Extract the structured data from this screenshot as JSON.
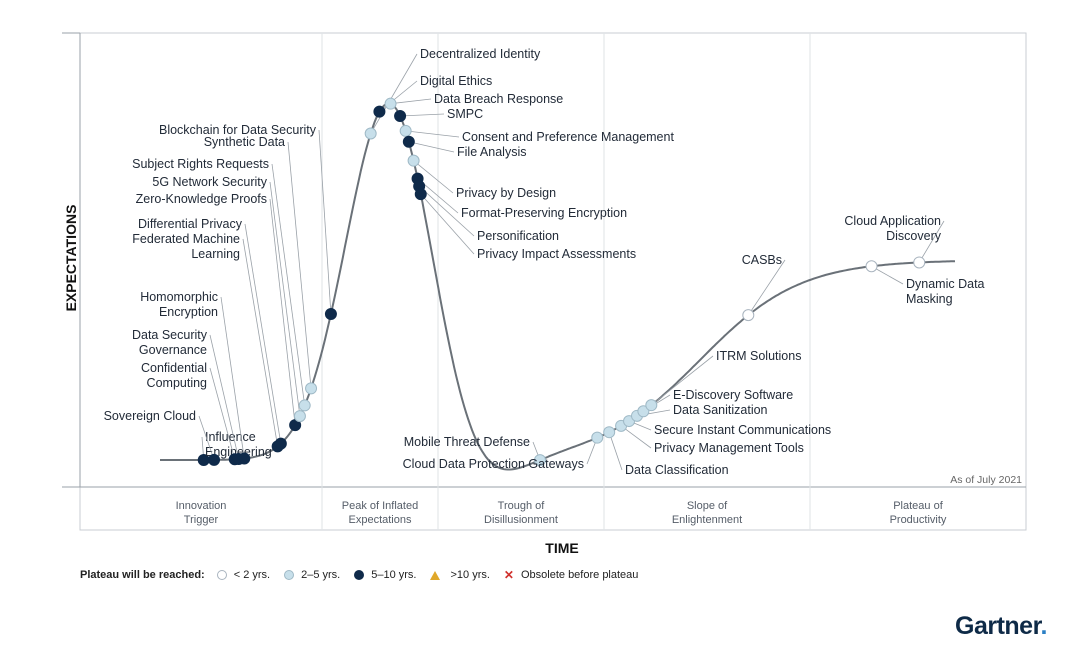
{
  "chart_data": {
    "type": "line",
    "x_label": "TIME",
    "y_label": "EXPECTATIONS",
    "note": "As of July 2021",
    "phases": [
      {
        "label": [
          "Innovation",
          "Trigger"
        ]
      },
      {
        "label": [
          "Peak of Inflated",
          "Expectations"
        ]
      },
      {
        "label": [
          "Trough of",
          "Disillusionment"
        ]
      },
      {
        "label": [
          "Slope of",
          "Enlightenment"
        ]
      },
      {
        "label": [
          "Plateau of",
          "Productivity"
        ]
      }
    ],
    "legend": {
      "title": "Plateau will be reached:",
      "items": [
        {
          "key": "lt2",
          "label": "< 2 yrs.",
          "fill": "#ffffff",
          "stroke": "#a9b4bf"
        },
        {
          "key": "2to5",
          "label": "2–5 yrs.",
          "fill": "#c7dfea",
          "stroke": "#9fb9c6"
        },
        {
          "key": "5to10",
          "label": "5–10 yrs.",
          "fill": "#0f2a4a",
          "stroke": "#0f2a4a"
        },
        {
          "key": "gt10",
          "label": ">10 yrs.",
          "fill": "#e0a82a",
          "stroke": "#e0a82a"
        },
        {
          "key": "obsolete",
          "label": "Obsolete before plateau",
          "fill": "#d0312d",
          "stroke": "#d0312d"
        }
      ]
    },
    "points": [
      {
        "name": [
          "Influence",
          "Engineering"
        ],
        "t": 0.055,
        "cat": "5to10"
      },
      {
        "name": [
          "Sovereign Cloud"
        ],
        "t": 0.068,
        "cat": "5to10"
      },
      {
        "name": [
          "Confidential",
          "Computing"
        ],
        "t": 0.094,
        "cat": "5to10"
      },
      {
        "name": [
          "Data Security",
          "Governance"
        ],
        "t": 0.099,
        "cat": "5to10"
      },
      {
        "name": [
          "Homomorphic",
          "Encryption"
        ],
        "t": 0.106,
        "cat": "5to10"
      },
      {
        "name": [
          "Federated Machine",
          "Learning"
        ],
        "t": 0.148,
        "cat": "5to10"
      },
      {
        "name": [
          "Differential Privacy"
        ],
        "t": 0.152,
        "cat": "5to10"
      },
      {
        "name": [
          "Zero-Knowledge Proofs"
        ],
        "t": 0.17,
        "cat": "5to10"
      },
      {
        "name": [
          "5G Network Security"
        ],
        "t": 0.176,
        "cat": "2to5"
      },
      {
        "name": [
          "Subject Rights Requests"
        ],
        "t": 0.182,
        "cat": "2to5"
      },
      {
        "name": [
          "Synthetic Data"
        ],
        "t": 0.19,
        "cat": "2to5"
      },
      {
        "name": [
          "Blockchain for Data Security"
        ],
        "t": 0.215,
        "cat": "5to10"
      },
      {
        "name": [
          "Decentralized Identity"
        ],
        "t": 0.265,
        "cat": "2to5"
      },
      {
        "name": [
          "Digital Ethics"
        ],
        "t": 0.276,
        "cat": "5to10"
      },
      {
        "name": [
          "Data Breach Response"
        ],
        "t": 0.29,
        "cat": "2to5"
      },
      {
        "name": [
          "SMPC"
        ],
        "t": 0.302,
        "cat": "5to10"
      },
      {
        "name": [
          "Consent and Preference Management"
        ],
        "t": 0.309,
        "cat": "2to5"
      },
      {
        "name": [
          "File Analysis"
        ],
        "t": 0.313,
        "cat": "5to10"
      },
      {
        "name": [
          "Privacy by Design"
        ],
        "t": 0.319,
        "cat": "2to5"
      },
      {
        "name": [
          "Format-Preserving Encryption"
        ],
        "t": 0.324,
        "cat": "5to10"
      },
      {
        "name": [
          "Personification"
        ],
        "t": 0.326,
        "cat": "5to10"
      },
      {
        "name": [
          "Privacy Impact Assessments"
        ],
        "t": 0.328,
        "cat": "5to10"
      },
      {
        "name": [
          "Mobile Threat Defense"
        ],
        "t": 0.478,
        "cat": "2to5"
      },
      {
        "name": [
          "Cloud Data Protection Gateways"
        ],
        "t": 0.55,
        "cat": "2to5"
      },
      {
        "name": [
          "Data Classification"
        ],
        "t": 0.565,
        "cat": "2to5"
      },
      {
        "name": [
          "Privacy Management Tools"
        ],
        "t": 0.58,
        "cat": "2to5"
      },
      {
        "name": [
          "Secure Instant Communications"
        ],
        "t": 0.59,
        "cat": "2to5"
      },
      {
        "name": [
          "Data Sanitization"
        ],
        "t": 0.6,
        "cat": "2to5"
      },
      {
        "name": [
          "E-Discovery Software"
        ],
        "t": 0.608,
        "cat": "2to5"
      },
      {
        "name": [
          "ITRM Solutions"
        ],
        "t": 0.618,
        "cat": "2to5"
      },
      {
        "name": [
          "CASBs"
        ],
        "t": 0.74,
        "cat": "lt2"
      },
      {
        "name": [
          "Dynamic Data",
          "Masking"
        ],
        "t": 0.895,
        "cat": "lt2"
      },
      {
        "name": [
          "Cloud Application",
          "Discovery"
        ],
        "t": 0.955,
        "cat": "lt2"
      }
    ]
  },
  "brand": {
    "name": "Gartner",
    "mark": "."
  }
}
